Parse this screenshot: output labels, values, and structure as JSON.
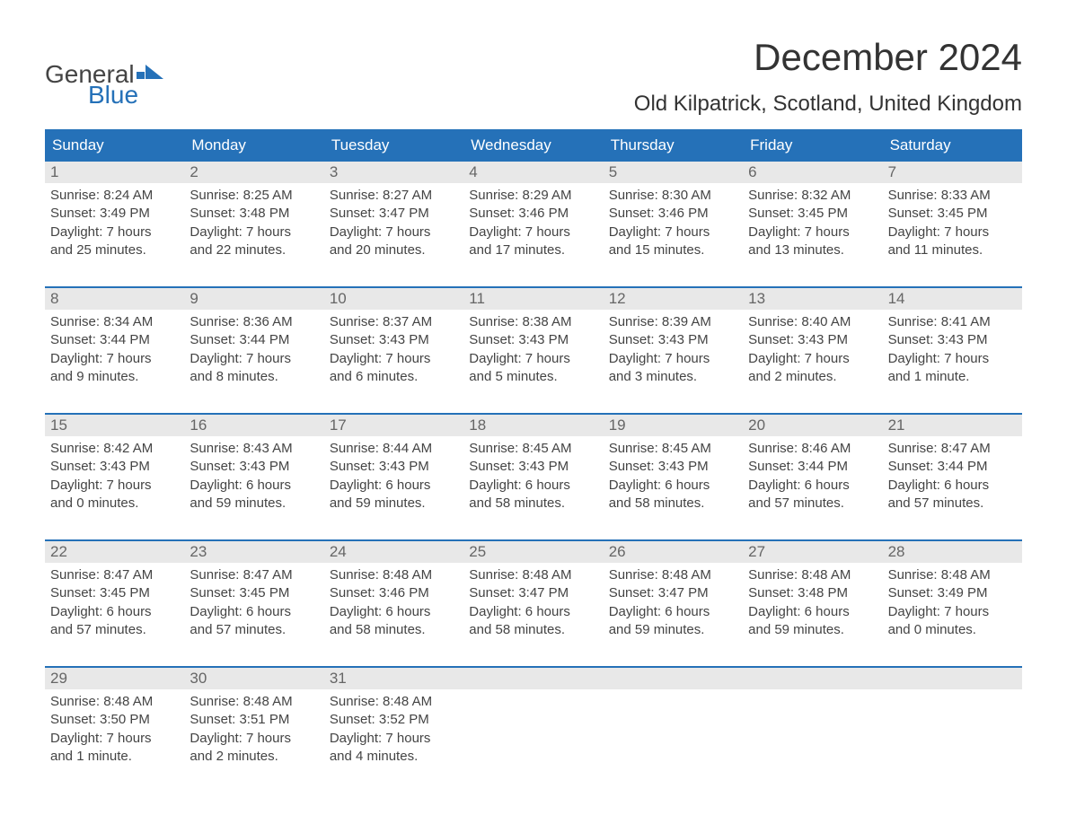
{
  "logo": {
    "top": "General",
    "bottom": "Blue",
    "flag_color": "#2571b8"
  },
  "title": "December 2024",
  "location": "Old Kilpatrick, Scotland, United Kingdom",
  "colors": {
    "header_bg": "#2571b8",
    "header_text": "#ffffff",
    "daynum_bg": "#e8e8e8",
    "daynum_text": "#666666",
    "body_text": "#444444",
    "week_divider": "#2571b8",
    "page_bg": "#ffffff"
  },
  "fonts": {
    "title_size_pt": 42,
    "location_size_pt": 24,
    "dow_size_pt": 17,
    "daynum_size_pt": 17,
    "body_size_pt": 15
  },
  "days_of_week": [
    "Sunday",
    "Monday",
    "Tuesday",
    "Wednesday",
    "Thursday",
    "Friday",
    "Saturday"
  ],
  "weeks": [
    {
      "nums": [
        "1",
        "2",
        "3",
        "4",
        "5",
        "6",
        "7"
      ],
      "cells": [
        {
          "sunrise": "Sunrise: 8:24 AM",
          "sunset": "Sunset: 3:49 PM",
          "d1": "Daylight: 7 hours",
          "d2": "and 25 minutes."
        },
        {
          "sunrise": "Sunrise: 8:25 AM",
          "sunset": "Sunset: 3:48 PM",
          "d1": "Daylight: 7 hours",
          "d2": "and 22 minutes."
        },
        {
          "sunrise": "Sunrise: 8:27 AM",
          "sunset": "Sunset: 3:47 PM",
          "d1": "Daylight: 7 hours",
          "d2": "and 20 minutes."
        },
        {
          "sunrise": "Sunrise: 8:29 AM",
          "sunset": "Sunset: 3:46 PM",
          "d1": "Daylight: 7 hours",
          "d2": "and 17 minutes."
        },
        {
          "sunrise": "Sunrise: 8:30 AM",
          "sunset": "Sunset: 3:46 PM",
          "d1": "Daylight: 7 hours",
          "d2": "and 15 minutes."
        },
        {
          "sunrise": "Sunrise: 8:32 AM",
          "sunset": "Sunset: 3:45 PM",
          "d1": "Daylight: 7 hours",
          "d2": "and 13 minutes."
        },
        {
          "sunrise": "Sunrise: 8:33 AM",
          "sunset": "Sunset: 3:45 PM",
          "d1": "Daylight: 7 hours",
          "d2": "and 11 minutes."
        }
      ]
    },
    {
      "nums": [
        "8",
        "9",
        "10",
        "11",
        "12",
        "13",
        "14"
      ],
      "cells": [
        {
          "sunrise": "Sunrise: 8:34 AM",
          "sunset": "Sunset: 3:44 PM",
          "d1": "Daylight: 7 hours",
          "d2": "and 9 minutes."
        },
        {
          "sunrise": "Sunrise: 8:36 AM",
          "sunset": "Sunset: 3:44 PM",
          "d1": "Daylight: 7 hours",
          "d2": "and 8 minutes."
        },
        {
          "sunrise": "Sunrise: 8:37 AM",
          "sunset": "Sunset: 3:43 PM",
          "d1": "Daylight: 7 hours",
          "d2": "and 6 minutes."
        },
        {
          "sunrise": "Sunrise: 8:38 AM",
          "sunset": "Sunset: 3:43 PM",
          "d1": "Daylight: 7 hours",
          "d2": "and 5 minutes."
        },
        {
          "sunrise": "Sunrise: 8:39 AM",
          "sunset": "Sunset: 3:43 PM",
          "d1": "Daylight: 7 hours",
          "d2": "and 3 minutes."
        },
        {
          "sunrise": "Sunrise: 8:40 AM",
          "sunset": "Sunset: 3:43 PM",
          "d1": "Daylight: 7 hours",
          "d2": "and 2 minutes."
        },
        {
          "sunrise": "Sunrise: 8:41 AM",
          "sunset": "Sunset: 3:43 PM",
          "d1": "Daylight: 7 hours",
          "d2": "and 1 minute."
        }
      ]
    },
    {
      "nums": [
        "15",
        "16",
        "17",
        "18",
        "19",
        "20",
        "21"
      ],
      "cells": [
        {
          "sunrise": "Sunrise: 8:42 AM",
          "sunset": "Sunset: 3:43 PM",
          "d1": "Daylight: 7 hours",
          "d2": "and 0 minutes."
        },
        {
          "sunrise": "Sunrise: 8:43 AM",
          "sunset": "Sunset: 3:43 PM",
          "d1": "Daylight: 6 hours",
          "d2": "and 59 minutes."
        },
        {
          "sunrise": "Sunrise: 8:44 AM",
          "sunset": "Sunset: 3:43 PM",
          "d1": "Daylight: 6 hours",
          "d2": "and 59 minutes."
        },
        {
          "sunrise": "Sunrise: 8:45 AM",
          "sunset": "Sunset: 3:43 PM",
          "d1": "Daylight: 6 hours",
          "d2": "and 58 minutes."
        },
        {
          "sunrise": "Sunrise: 8:45 AM",
          "sunset": "Sunset: 3:43 PM",
          "d1": "Daylight: 6 hours",
          "d2": "and 58 minutes."
        },
        {
          "sunrise": "Sunrise: 8:46 AM",
          "sunset": "Sunset: 3:44 PM",
          "d1": "Daylight: 6 hours",
          "d2": "and 57 minutes."
        },
        {
          "sunrise": "Sunrise: 8:47 AM",
          "sunset": "Sunset: 3:44 PM",
          "d1": "Daylight: 6 hours",
          "d2": "and 57 minutes."
        }
      ]
    },
    {
      "nums": [
        "22",
        "23",
        "24",
        "25",
        "26",
        "27",
        "28"
      ],
      "cells": [
        {
          "sunrise": "Sunrise: 8:47 AM",
          "sunset": "Sunset: 3:45 PM",
          "d1": "Daylight: 6 hours",
          "d2": "and 57 minutes."
        },
        {
          "sunrise": "Sunrise: 8:47 AM",
          "sunset": "Sunset: 3:45 PM",
          "d1": "Daylight: 6 hours",
          "d2": "and 57 minutes."
        },
        {
          "sunrise": "Sunrise: 8:48 AM",
          "sunset": "Sunset: 3:46 PM",
          "d1": "Daylight: 6 hours",
          "d2": "and 58 minutes."
        },
        {
          "sunrise": "Sunrise: 8:48 AM",
          "sunset": "Sunset: 3:47 PM",
          "d1": "Daylight: 6 hours",
          "d2": "and 58 minutes."
        },
        {
          "sunrise": "Sunrise: 8:48 AM",
          "sunset": "Sunset: 3:47 PM",
          "d1": "Daylight: 6 hours",
          "d2": "and 59 minutes."
        },
        {
          "sunrise": "Sunrise: 8:48 AM",
          "sunset": "Sunset: 3:48 PM",
          "d1": "Daylight: 6 hours",
          "d2": "and 59 minutes."
        },
        {
          "sunrise": "Sunrise: 8:48 AM",
          "sunset": "Sunset: 3:49 PM",
          "d1": "Daylight: 7 hours",
          "d2": "and 0 minutes."
        }
      ]
    },
    {
      "nums": [
        "29",
        "30",
        "31",
        "",
        "",
        "",
        ""
      ],
      "cells": [
        {
          "sunrise": "Sunrise: 8:48 AM",
          "sunset": "Sunset: 3:50 PM",
          "d1": "Daylight: 7 hours",
          "d2": "and 1 minute."
        },
        {
          "sunrise": "Sunrise: 8:48 AM",
          "sunset": "Sunset: 3:51 PM",
          "d1": "Daylight: 7 hours",
          "d2": "and 2 minutes."
        },
        {
          "sunrise": "Sunrise: 8:48 AM",
          "sunset": "Sunset: 3:52 PM",
          "d1": "Daylight: 7 hours",
          "d2": "and 4 minutes."
        },
        {
          "sunrise": "",
          "sunset": "",
          "d1": "",
          "d2": ""
        },
        {
          "sunrise": "",
          "sunset": "",
          "d1": "",
          "d2": ""
        },
        {
          "sunrise": "",
          "sunset": "",
          "d1": "",
          "d2": ""
        },
        {
          "sunrise": "",
          "sunset": "",
          "d1": "",
          "d2": ""
        }
      ]
    }
  ]
}
